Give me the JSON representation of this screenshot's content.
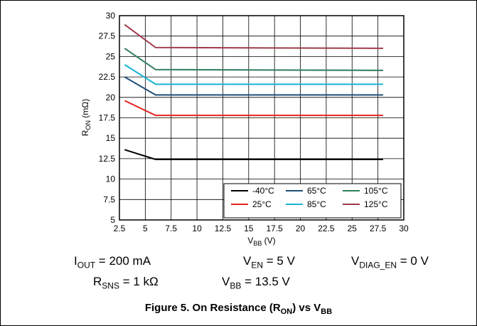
{
  "chart_data": {
    "type": "line",
    "xlabel_main": "V",
    "xlabel_sub": "BB",
    "xlabel_unit": " (V)",
    "ylabel_main": "R",
    "ylabel_sub": "ON",
    "ylabel_unit": " (mΩ)",
    "xlim": [
      2.5,
      30
    ],
    "ylim": [
      5,
      30
    ],
    "xticks": [
      2.5,
      5,
      7.5,
      10,
      12.5,
      15,
      17.5,
      20,
      22.5,
      25,
      27.5,
      30
    ],
    "xtick_labels": [
      "2.5",
      "5",
      "7.5",
      "10",
      "12.5",
      "15",
      "17.5",
      "20",
      "22.5",
      "25",
      "27.5",
      "30"
    ],
    "yticks": [
      5,
      7.5,
      10,
      12.5,
      15,
      17.5,
      20,
      22.5,
      25,
      27.5,
      30
    ],
    "ytick_labels": [
      "5",
      "7.5",
      "10",
      "12.5",
      "15",
      "17.5",
      "20",
      "22.5",
      "25",
      "27.5",
      "30"
    ],
    "grid": true,
    "legend_position": "bottom-right",
    "series": [
      {
        "name": "-40°C",
        "color": "#000000",
        "x": [
          3,
          6,
          28
        ],
        "y": [
          13.6,
          12.4,
          12.4
        ]
      },
      {
        "name": "25°C",
        "color": "#e8211f",
        "x": [
          3,
          6,
          28
        ],
        "y": [
          19.6,
          17.8,
          17.8
        ]
      },
      {
        "name": "65°C",
        "color": "#1f4e79",
        "x": [
          3,
          6,
          28
        ],
        "y": [
          22.5,
          20.3,
          20.3
        ]
      },
      {
        "name": "85°C",
        "color": "#18b4d4",
        "x": [
          3,
          6,
          28
        ],
        "y": [
          24.0,
          21.6,
          21.6
        ]
      },
      {
        "name": "105°C",
        "color": "#2e7d5b",
        "x": [
          3,
          6,
          28
        ],
        "y": [
          26.0,
          23.4,
          23.3
        ]
      },
      {
        "name": "125°C",
        "color": "#9e3b4b",
        "x": [
          3,
          6,
          28
        ],
        "y": [
          28.9,
          26.1,
          26.0
        ]
      }
    ]
  },
  "conditions": {
    "iout": {
      "main": "I",
      "sub": "OUT",
      "rest": " = 200 mA"
    },
    "ven": {
      "main": "V",
      "sub": "EN",
      "rest": " = 5 V"
    },
    "vdiag": {
      "main": "V",
      "sub": "DIAG_EN",
      "rest": " = 0 V"
    },
    "rsns": {
      "main": "R",
      "sub": "SNS",
      "rest": " = 1 kΩ"
    },
    "vbb": {
      "main": "V",
      "sub": "BB",
      "rest": " = 13.5 V"
    }
  },
  "caption": {
    "text": "Figure 5. On Resistance (R",
    "sub1": "ON",
    "mid": ") vs V",
    "sub2": "BB"
  }
}
